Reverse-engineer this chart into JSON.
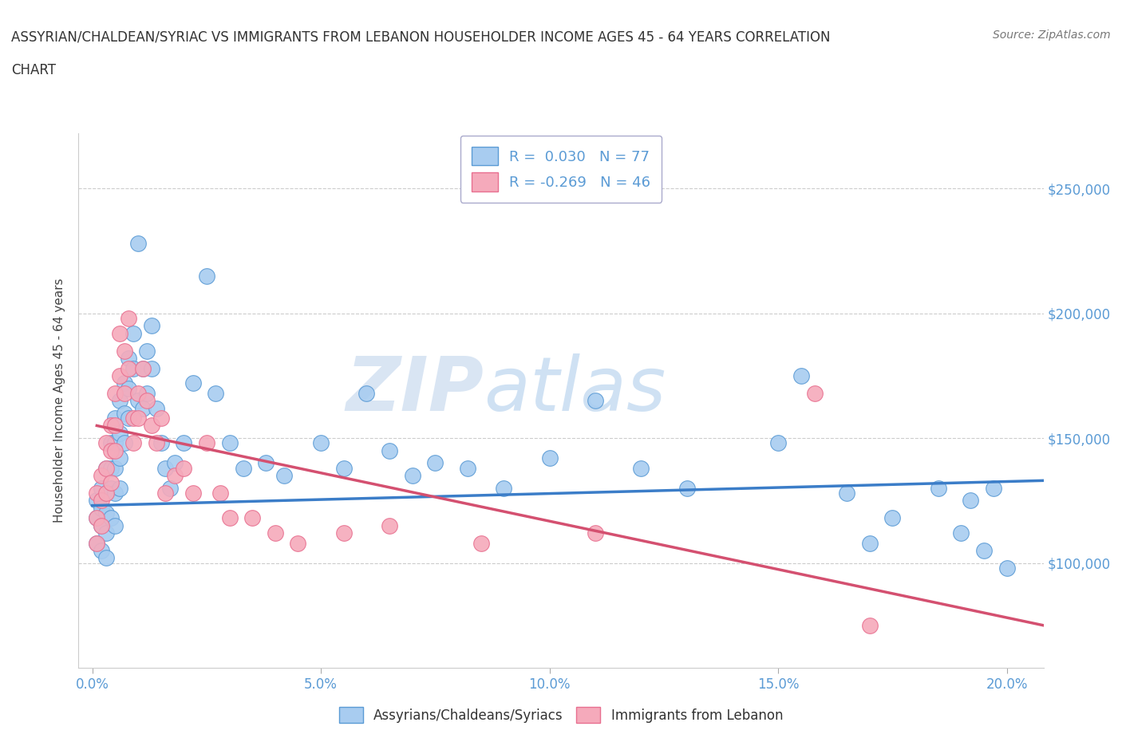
{
  "title_line1": "ASSYRIAN/CHALDEAN/SYRIAC VS IMMIGRANTS FROM LEBANON HOUSEHOLDER INCOME AGES 45 - 64 YEARS CORRELATION",
  "title_line2": "CHART",
  "source": "Source: ZipAtlas.com",
  "xlabel_ticks": [
    "0.0%",
    "5.0%",
    "10.0%",
    "15.0%",
    "20.0%"
  ],
  "xlabel_vals": [
    0.0,
    0.05,
    0.1,
    0.15,
    0.2
  ],
  "ylabel": "Householder Income Ages 45 - 64 years",
  "ylabel_ticks": [
    "$100,000",
    "$150,000",
    "$200,000",
    "$250,000"
  ],
  "ylabel_vals": [
    100000,
    150000,
    200000,
    250000
  ],
  "xlim": [
    -0.003,
    0.208
  ],
  "ylim": [
    58000,
    272000
  ],
  "watermark_zip": "ZIP",
  "watermark_atlas": "atlas",
  "legend1_label": "R =  0.030   N = 77",
  "legend2_label": "R = -0.269   N = 46",
  "series1_color": "#A8CCF0",
  "series2_color": "#F5AABB",
  "series1_edge": "#5B9BD5",
  "series2_edge": "#E87090",
  "line1_color": "#3B7DC8",
  "line2_color": "#D45070",
  "tick_color": "#5B9BD5",
  "grid_color": "#CCCCCC",
  "bg_color": "#FFFFFF",
  "scatter1_x": [
    0.001,
    0.001,
    0.001,
    0.002,
    0.002,
    0.002,
    0.002,
    0.003,
    0.003,
    0.003,
    0.003,
    0.003,
    0.004,
    0.004,
    0.004,
    0.004,
    0.005,
    0.005,
    0.005,
    0.005,
    0.005,
    0.006,
    0.006,
    0.006,
    0.006,
    0.007,
    0.007,
    0.007,
    0.008,
    0.008,
    0.008,
    0.009,
    0.009,
    0.01,
    0.01,
    0.011,
    0.011,
    0.012,
    0.012,
    0.013,
    0.013,
    0.014,
    0.015,
    0.016,
    0.017,
    0.018,
    0.02,
    0.022,
    0.025,
    0.027,
    0.03,
    0.033,
    0.038,
    0.042,
    0.05,
    0.055,
    0.06,
    0.065,
    0.07,
    0.075,
    0.082,
    0.09,
    0.1,
    0.11,
    0.12,
    0.13,
    0.15,
    0.155,
    0.165,
    0.17,
    0.175,
    0.185,
    0.19,
    0.192,
    0.195,
    0.197,
    0.2
  ],
  "scatter1_y": [
    125000,
    118000,
    108000,
    130000,
    122000,
    115000,
    105000,
    138000,
    128000,
    120000,
    112000,
    102000,
    148000,
    138000,
    130000,
    118000,
    158000,
    148000,
    138000,
    128000,
    115000,
    165000,
    152000,
    142000,
    130000,
    172000,
    160000,
    148000,
    182000,
    170000,
    158000,
    192000,
    178000,
    228000,
    165000,
    178000,
    162000,
    185000,
    168000,
    195000,
    178000,
    162000,
    148000,
    138000,
    130000,
    140000,
    148000,
    172000,
    215000,
    168000,
    148000,
    138000,
    140000,
    135000,
    148000,
    138000,
    168000,
    145000,
    135000,
    140000,
    138000,
    130000,
    142000,
    165000,
    138000,
    130000,
    148000,
    175000,
    128000,
    108000,
    118000,
    130000,
    112000,
    125000,
    105000,
    130000,
    98000
  ],
  "scatter2_x": [
    0.001,
    0.001,
    0.001,
    0.002,
    0.002,
    0.002,
    0.003,
    0.003,
    0.003,
    0.004,
    0.004,
    0.004,
    0.005,
    0.005,
    0.005,
    0.006,
    0.006,
    0.007,
    0.007,
    0.008,
    0.008,
    0.009,
    0.009,
    0.01,
    0.01,
    0.011,
    0.012,
    0.013,
    0.014,
    0.015,
    0.016,
    0.018,
    0.02,
    0.022,
    0.025,
    0.028,
    0.03,
    0.035,
    0.04,
    0.045,
    0.055,
    0.065,
    0.085,
    0.11,
    0.158,
    0.17
  ],
  "scatter2_y": [
    128000,
    118000,
    108000,
    135000,
    125000,
    115000,
    148000,
    138000,
    128000,
    155000,
    145000,
    132000,
    168000,
    155000,
    145000,
    192000,
    175000,
    185000,
    168000,
    198000,
    178000,
    158000,
    148000,
    168000,
    158000,
    178000,
    165000,
    155000,
    148000,
    158000,
    128000,
    135000,
    138000,
    128000,
    148000,
    128000,
    118000,
    118000,
    112000,
    108000,
    112000,
    115000,
    108000,
    112000,
    168000,
    75000
  ],
  "trendline1_x": [
    0.0,
    0.208
  ],
  "trendline1_y": [
    123000,
    133000
  ],
  "trendline2_x": [
    0.001,
    0.208
  ],
  "trendline2_y": [
    155000,
    75000
  ],
  "bottom_legend_labels": [
    "Assyrians/Chaldeans/Syriacs",
    "Immigrants from Lebanon"
  ]
}
